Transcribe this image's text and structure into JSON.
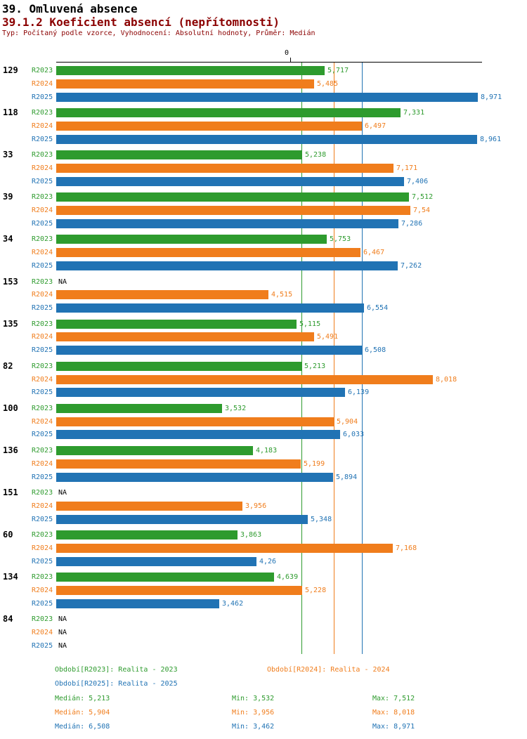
{
  "header": {
    "title": "39. Omluvená absence",
    "subtitle": "39.1.2 Koeficient absencí (nepřítomnosti)",
    "meta": "Typ: Počítaný podle vzorce, Vyhodnocení: Absolutní hodnoty, Průměr: Medián"
  },
  "colors": {
    "r2023": "#2E9B2E",
    "r2024": "#F07D1C",
    "r2025": "#2173B4",
    "heading": "#8B0000",
    "axis": "#000000",
    "na_text": "#000000"
  },
  "chart_data": {
    "type": "bar",
    "orientation": "horizontal",
    "title": "39.1.2 Koeficient absencí (nepřítomnosti)",
    "xlabel": "",
    "ylabel": "",
    "xlim": [
      0,
      9.06
    ],
    "zero_label": "0",
    "grid": "median-lines-vertical",
    "legend_position": "bottom",
    "series_labels": [
      "R2023",
      "R2024",
      "R2025"
    ],
    "medians": {
      "R2023": 5.213,
      "R2024": 5.904,
      "R2025": 6.508
    },
    "groups": [
      {
        "id": "129",
        "values": [
          5.717,
          5.485,
          8.971
        ],
        "labels": [
          "5,717",
          "5,485",
          "8,971"
        ]
      },
      {
        "id": "118",
        "values": [
          7.331,
          6.497,
          8.961
        ],
        "labels": [
          "7,331",
          "6,497",
          "8,961"
        ]
      },
      {
        "id": "33",
        "values": [
          5.238,
          7.171,
          7.406
        ],
        "labels": [
          "5,238",
          "7,171",
          "7,406"
        ]
      },
      {
        "id": "39",
        "values": [
          7.512,
          7.54,
          7.286
        ],
        "labels": [
          "7,512",
          "7,54",
          "7,286"
        ]
      },
      {
        "id": "34",
        "values": [
          5.753,
          6.467,
          7.262
        ],
        "labels": [
          "5,753",
          "6,467",
          "7,262"
        ]
      },
      {
        "id": "153",
        "values": [
          null,
          4.515,
          6.554
        ],
        "labels": [
          "NA",
          "4,515",
          "6,554"
        ]
      },
      {
        "id": "135",
        "values": [
          5.115,
          5.491,
          6.508
        ],
        "labels": [
          "5,115",
          "5,491",
          "6,508"
        ]
      },
      {
        "id": "82",
        "values": [
          5.213,
          8.018,
          6.139
        ],
        "labels": [
          "5,213",
          "8,018",
          "6,139"
        ]
      },
      {
        "id": "100",
        "values": [
          3.532,
          5.904,
          6.033
        ],
        "labels": [
          "3,532",
          "5,904",
          "6,033"
        ]
      },
      {
        "id": "136",
        "values": [
          4.183,
          5.199,
          5.894
        ],
        "labels": [
          "4,183",
          "5,199",
          "5,894"
        ]
      },
      {
        "id": "151",
        "values": [
          null,
          3.956,
          5.348
        ],
        "labels": [
          "NA",
          "3,956",
          "5,348"
        ]
      },
      {
        "id": "60",
        "values": [
          3.863,
          7.168,
          4.26
        ],
        "labels": [
          "3,863",
          "7,168",
          "4,26"
        ]
      },
      {
        "id": "134",
        "values": [
          4.639,
          5.228,
          3.462
        ],
        "labels": [
          "4,639",
          "5,228",
          "3,462"
        ]
      },
      {
        "id": "84",
        "values": [
          null,
          null,
          null
        ],
        "labels": [
          "NA",
          "NA",
          "NA"
        ]
      }
    ]
  },
  "legend": {
    "items": [
      {
        "series": "R2023",
        "label": "Období[R2023]: Realita - 2023"
      },
      {
        "series": "R2024",
        "label": "Období[R2024]: Realita - 2024"
      },
      {
        "series": "R2025",
        "label": "Období[R2025]: Realita - 2025"
      }
    ]
  },
  "stats": {
    "rows": [
      {
        "series": "R2023",
        "median": "Medián: 5,213",
        "min": "Min: 3,532",
        "max": "Max: 7,512"
      },
      {
        "series": "R2024",
        "median": "Medián: 5,904",
        "min": "Min: 3,956",
        "max": "Max: 8,018"
      },
      {
        "series": "R2025",
        "median": "Medián: 6,508",
        "min": "Min: 3,462",
        "max": "Max: 8,971"
      }
    ]
  }
}
